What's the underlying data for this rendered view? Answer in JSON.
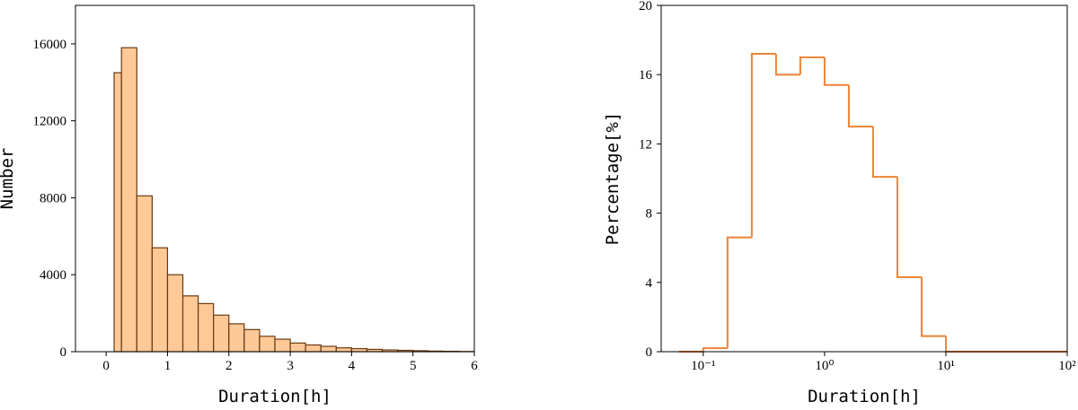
{
  "chart_data": [
    {
      "type": "histogram",
      "xlabel": "Duration[h]",
      "ylabel": "Number",
      "bins": [
        0.13,
        0.25,
        0.5,
        0.75,
        1.0,
        1.25,
        1.5,
        1.75,
        2.0,
        2.25,
        2.5,
        2.75,
        3.0,
        3.25,
        3.5,
        3.75,
        4.0,
        4.25,
        4.5,
        4.75,
        5.0,
        5.25,
        5.5,
        5.75,
        6.0
      ],
      "values": [
        14500,
        15800,
        8100,
        5400,
        4000,
        2900,
        2500,
        1900,
        1450,
        1150,
        800,
        650,
        450,
        350,
        280,
        200,
        160,
        120,
        90,
        70,
        50,
        30,
        20,
        10
      ],
      "color": "#fdc997",
      "edgecolor": "#6b3a12",
      "xlim": [
        -0.5,
        6
      ],
      "xticks": [
        0,
        1,
        2,
        3,
        4,
        5,
        6
      ],
      "ylim": [
        0,
        18000
      ],
      "yticks": [
        0,
        4000,
        8000,
        12000,
        16000
      ]
    },
    {
      "type": "histogram",
      "xlabel": "Duration[h]",
      "ylabel": "Percentage[%]",
      "xscale": "log",
      "bins": [
        0.0631,
        0.1,
        0.1585,
        0.2512,
        0.3981,
        0.631,
        1,
        1.585,
        2.512,
        3.981,
        6.31,
        10,
        15.85,
        25.12,
        39.81,
        63.1,
        100
      ],
      "values": [
        0,
        0.2,
        6.6,
        17.2,
        16.0,
        17.0,
        15.4,
        13.0,
        10.1,
        4.3,
        0.9,
        0,
        0,
        0,
        0,
        0
      ],
      "edgecolor": "#ee8333",
      "xlim": [
        0.045,
        100
      ],
      "xticks": [
        {
          "value": 0.1,
          "label": "10⁻¹"
        },
        {
          "value": 1,
          "label": "10⁰"
        },
        {
          "value": 10,
          "label": "10¹"
        },
        {
          "value": 100,
          "label": "10²"
        }
      ],
      "ylim": [
        0,
        20
      ],
      "yticks": [
        0,
        4,
        8,
        12,
        16,
        20
      ]
    }
  ]
}
